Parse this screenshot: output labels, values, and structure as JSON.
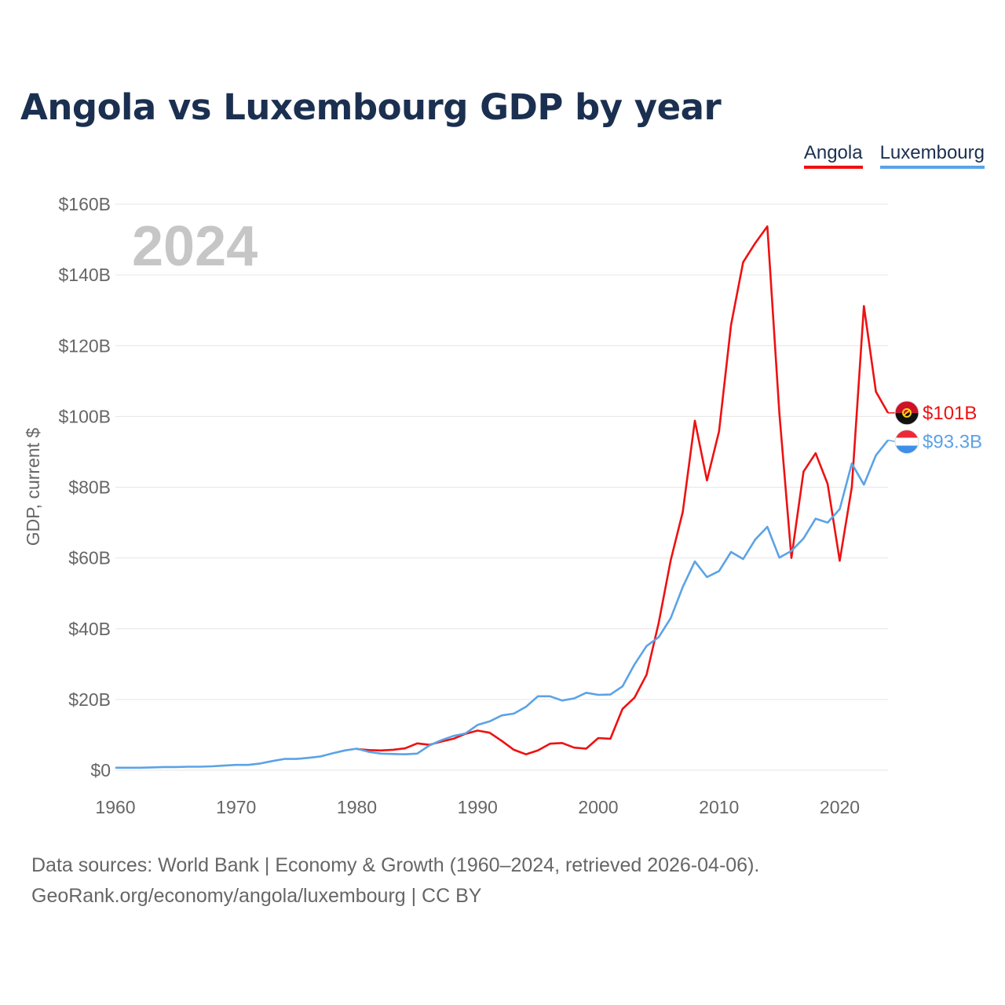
{
  "title": "Angola vs Luxembourg GDP by year",
  "legend": {
    "angola": "Angola",
    "luxembourg": "Luxembourg"
  },
  "source": {
    "line1": "Data sources: World Bank | Economy & Growth (1960–2024, retrieved 2026-04-06).",
    "line2": "GeoRank.org/economy/angola/luxembourg | CC BY"
  },
  "chart_data": {
    "type": "line",
    "title": "Angola vs Luxembourg GDP by year",
    "year_label": "2024",
    "xlabel": "",
    "ylabel": "GDP, current $",
    "xlim": [
      1960,
      2024
    ],
    "ylim": [
      0,
      160
    ],
    "x_ticks": [
      1960,
      1970,
      1980,
      1990,
      2000,
      2010,
      2020
    ],
    "y_ticks": [
      0,
      20,
      40,
      60,
      80,
      100,
      120,
      140,
      160
    ],
    "y_tick_labels": [
      "$0",
      "$20B",
      "$40B",
      "$60B",
      "$80B",
      "$100B",
      "$120B",
      "$140B",
      "$160B"
    ],
    "grid": true,
    "series": [
      {
        "name": "Angola",
        "color": "#ee1111",
        "end_label": "$101B",
        "flag_icon": "angola-flag-icon",
        "x": [
          1980,
          1981,
          1982,
          1983,
          1984,
          1985,
          1986,
          1987,
          1988,
          1989,
          1990,
          1991,
          1992,
          1993,
          1994,
          1995,
          1996,
          1997,
          1998,
          1999,
          2000,
          2001,
          2002,
          2003,
          2004,
          2005,
          2006,
          2007,
          2008,
          2009,
          2010,
          2011,
          2012,
          2013,
          2014,
          2015,
          2016,
          2017,
          2018,
          2019,
          2020,
          2021,
          2022,
          2023,
          2024
        ],
        "values": [
          6.0,
          5.7,
          5.6,
          5.8,
          6.2,
          7.6,
          7.2,
          8.1,
          8.9,
          10.3,
          11.2,
          10.6,
          8.3,
          5.8,
          4.5,
          5.6,
          7.5,
          7.7,
          6.4,
          6.1,
          9.1,
          8.9,
          17.3,
          20.5,
          27.0,
          41.6,
          59.4,
          73.0,
          98.8,
          81.9,
          95.8,
          125.9,
          143.6,
          149.0,
          153.7,
          101.0,
          60.0,
          84.4,
          89.6,
          80.9,
          59.2,
          80.0,
          131.2,
          107.0,
          101.0
        ]
      },
      {
        "name": "Luxembourg",
        "color": "#5ba3e6",
        "end_label": "$93.3B",
        "flag_icon": "luxembourg-flag-icon",
        "x": [
          1960,
          1961,
          1962,
          1963,
          1964,
          1965,
          1966,
          1967,
          1968,
          1969,
          1970,
          1971,
          1972,
          1973,
          1974,
          1975,
          1976,
          1977,
          1978,
          1979,
          1980,
          1981,
          1982,
          1983,
          1984,
          1985,
          1986,
          1987,
          1988,
          1989,
          1990,
          1991,
          1992,
          1993,
          1994,
          1995,
          1996,
          1997,
          1998,
          1999,
          2000,
          2001,
          2002,
          2003,
          2004,
          2005,
          2006,
          2007,
          2008,
          2009,
          2010,
          2011,
          2012,
          2013,
          2014,
          2015,
          2016,
          2017,
          2018,
          2019,
          2020,
          2021,
          2022,
          2023,
          2024
        ],
        "values": [
          0.7,
          0.7,
          0.7,
          0.8,
          0.9,
          0.9,
          1.0,
          1.0,
          1.1,
          1.3,
          1.5,
          1.5,
          1.9,
          2.6,
          3.2,
          3.2,
          3.5,
          3.9,
          4.8,
          5.6,
          6.1,
          5.2,
          4.7,
          4.6,
          4.5,
          4.7,
          7.0,
          8.5,
          9.7,
          10.4,
          12.8,
          13.8,
          15.5,
          16.0,
          17.9,
          20.9,
          20.9,
          19.7,
          20.3,
          21.9,
          21.3,
          21.4,
          23.7,
          29.9,
          35.1,
          37.6,
          43.0,
          51.8,
          59.0,
          54.6,
          56.3,
          61.7,
          59.7,
          65.2,
          68.8,
          60.1,
          62.0,
          65.5,
          71.1,
          70.0,
          73.8,
          86.7,
          80.7,
          89.0,
          93.3
        ]
      }
    ]
  }
}
